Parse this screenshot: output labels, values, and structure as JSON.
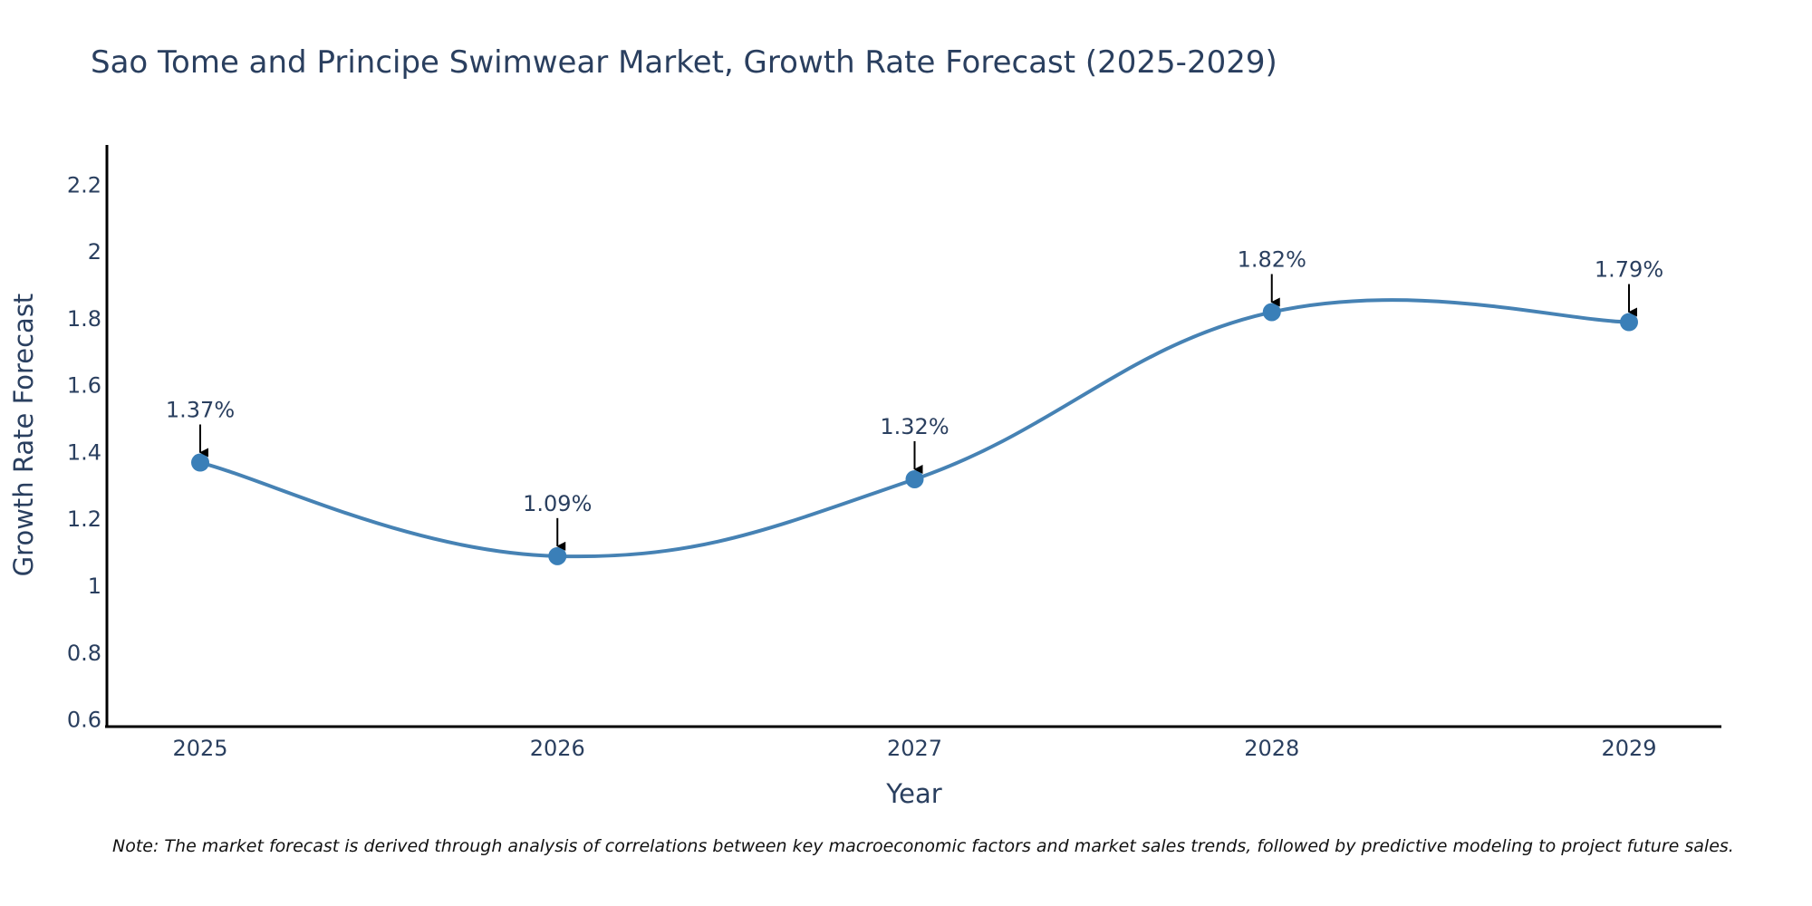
{
  "chart_data": {
    "type": "line",
    "title": "Sao Tome and Principe Swimwear Market, Growth Rate Forecast (2025-2029)",
    "xlabel": "Year",
    "ylabel": "Growth Rate Forecast",
    "categories": [
      "2025",
      "2026",
      "2027",
      "2028",
      "2029"
    ],
    "values": [
      1.37,
      1.09,
      1.32,
      1.82,
      1.79
    ],
    "data_labels": [
      "1.37%",
      "1.09%",
      "1.32%",
      "1.82%",
      "1.79%"
    ],
    "y_ticks": [
      0.6,
      0.8,
      1,
      1.2,
      1.4,
      1.6,
      1.8,
      2,
      2.2
    ],
    "y_tick_labels": [
      "0.6",
      "0.8",
      "1",
      "1.2",
      "1.4",
      "1.6",
      "1.8",
      "2",
      "2.2"
    ],
    "ylim": [
      0.58,
      2.32
    ],
    "line_shape": "spline",
    "grid": false,
    "colors": {
      "line": "#4682b4",
      "marker": "#3a7fb8",
      "text": "#2a3f5f",
      "axis": "#000000",
      "arrow": "#000000"
    },
    "note": "Note: The market forecast is derived through analysis of correlations between key macroeconomic factors and market sales trends, followed by predictive modeling to project future sales."
  }
}
